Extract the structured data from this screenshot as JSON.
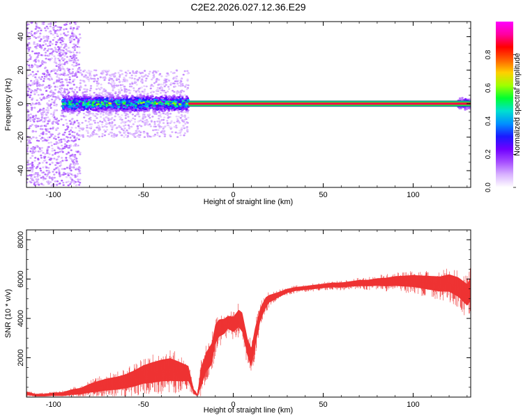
{
  "title": "C2E2.2026.027.12.36.E29",
  "colors": {
    "background": "#ffffff",
    "axis": "#000000",
    "snr_line": "#ee3333",
    "zero_band_edge": "#2a8a6a"
  },
  "chart_data": [
    {
      "type": "heatmap",
      "xlabel": "Height of straight line (km)",
      "ylabel": "Frequency (Hz)",
      "xlim": [
        -115,
        132
      ],
      "ylim": [
        -50,
        49
      ],
      "x_ticks": [
        -100,
        -50,
        0,
        50,
        100
      ],
      "x_tick_labels": [
        "-100",
        "-50",
        "0",
        "50",
        "100"
      ],
      "y_ticks": [
        -40,
        -20,
        0,
        20,
        40
      ],
      "y_tick_labels": [
        "-40",
        "-20",
        "0",
        "20",
        "40"
      ],
      "grid": false,
      "colorbar": {
        "label": "Normalized spectral amplitude",
        "range": [
          0,
          1
        ],
        "ticks": [
          0.0,
          0.2,
          0.4,
          0.6,
          0.8
        ],
        "tick_labels": [
          "0.0",
          "0.2",
          "0.4",
          "0.6",
          "0.8"
        ],
        "colormap": [
          "#ffffff",
          "#d9b3ff",
          "#a64dff",
          "#7000ff",
          "#1a1aff",
          "#0090ff",
          "#00e0d0",
          "#00ff30",
          "#a0ff00",
          "#ffd000",
          "#ff6000",
          "#ff0000",
          "#ff00a0",
          "#ff00ff"
        ]
      },
      "features": {
        "zero_band_amplitude": 0.88,
        "zero_band_start_km": -25,
        "dense_cluster": [
          {
            "x_from": -95,
            "x_to": -25,
            "freq_halfwidth_hz": 6,
            "peak_amplitude": 0.5
          },
          {
            "x_from": 125,
            "x_to": 132,
            "freq_halfwidth_hz": 4,
            "peak_amplitude": 0.45
          }
        ],
        "scatter_spread": [
          {
            "x_from": -115,
            "x_to": -85,
            "freq_halfwidth_hz": 49,
            "amplitude": 0.08
          },
          {
            "x_from": -85,
            "x_to": -25,
            "freq_halfwidth_hz": 20,
            "amplitude": 0.06
          }
        ]
      }
    },
    {
      "type": "line",
      "xlabel": "Height of straight line (km)",
      "ylabel": "SNR (10 * v/v)",
      "xlim": [
        -115,
        132
      ],
      "ylim": [
        0,
        8500
      ],
      "x_ticks": [
        -100,
        -50,
        0,
        50,
        100
      ],
      "x_tick_labels": [
        "-100",
        "-50",
        "0",
        "50",
        "100"
      ],
      "y_ticks": [
        2000,
        4000,
        6000,
        8000
      ],
      "y_tick_labels": [
        "2000",
        "4000",
        "6000",
        "8000"
      ],
      "grid": false,
      "series": [
        {
          "color": "#ee3333",
          "x": [
            -115,
            -110,
            -105,
            -100,
            -95,
            -90,
            -85,
            -80,
            -75,
            -70,
            -65,
            -60,
            -55,
            -50,
            -45,
            -40,
            -35,
            -30,
            -25,
            -22,
            -20,
            -18,
            -15,
            -12,
            -10,
            -8,
            -5,
            -3,
            0,
            3,
            5,
            8,
            10,
            12,
            15,
            18,
            20,
            25,
            30,
            35,
            40,
            45,
            50,
            55,
            60,
            65,
            70,
            75,
            80,
            85,
            90,
            95,
            100,
            105,
            110,
            115,
            120,
            125,
            130,
            132
          ],
          "y": [
            200,
            100,
            100,
            150,
            150,
            250,
            300,
            450,
            550,
            650,
            700,
            800,
            950,
            1150,
            1250,
            1350,
            1400,
            1300,
            1200,
            300,
            100,
            1000,
            1800,
            2200,
            3200,
            3500,
            3600,
            3800,
            3700,
            4000,
            3800,
            2500,
            2000,
            3000,
            4200,
            4800,
            5000,
            5200,
            5400,
            5500,
            5550,
            5600,
            5650,
            5700,
            5700,
            5750,
            5800,
            5800,
            5850,
            5850,
            5900,
            5900,
            5900,
            5850,
            5800,
            5750,
            5800,
            5600,
            5200,
            5500
          ],
          "y_spread": [
            150,
            120,
            120,
            150,
            180,
            250,
            300,
            400,
            500,
            550,
            600,
            650,
            750,
            850,
            950,
            1000,
            1050,
            900,
            700,
            200,
            100,
            900,
            900,
            1000,
            900,
            800,
            700,
            600,
            700,
            800,
            900,
            800,
            900,
            900,
            600,
            500,
            350,
            250,
            200,
            180,
            180,
            200,
            200,
            220,
            230,
            250,
            280,
            300,
            350,
            400,
            450,
            500,
            550,
            600,
            650,
            700,
            800,
            900,
            1000,
            1100
          ]
        }
      ]
    }
  ]
}
